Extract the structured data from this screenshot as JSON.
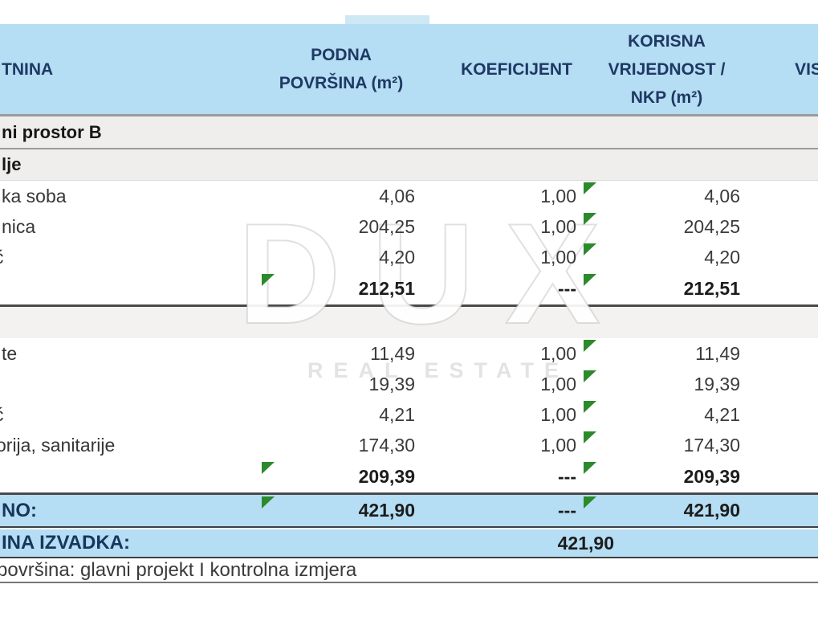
{
  "header": {
    "col_nekretnina": "TNINA",
    "col_podna": [
      "PODNA",
      "POVRŠINA (m²)"
    ],
    "col_koeficijent": "KOEFICIJENT",
    "col_korisna": [
      "KORISNA",
      "VRIJEDNOST /",
      "NKP (m²)"
    ],
    "col_visina": "VIS"
  },
  "rows": [
    {
      "type": "band",
      "label": "ni prostor B"
    },
    {
      "type": "band2",
      "label": "lje"
    },
    {
      "type": "data",
      "label": "ka soba",
      "podna": "4,06",
      "koef": "1,00",
      "korisna": "4,06",
      "flag_korisna": true
    },
    {
      "type": "data",
      "label": "nica",
      "podna": "204,25",
      "koef": "1,00",
      "korisna": "204,25",
      "flag_korisna": true
    },
    {
      "type": "data",
      "label": "ć",
      "label_clip": "clip9",
      "podna": "4,20",
      "koef": "1,00",
      "korisna": "4,20",
      "flag_korisna": true
    },
    {
      "type": "subtotal",
      "label": "",
      "podna": "212,51",
      "koef": "---",
      "korisna": "212,51",
      "flag_podna": true,
      "flag_korisna": true
    },
    {
      "type": "spacer"
    },
    {
      "type": "data",
      "label": "te",
      "podna": "11,49",
      "koef": "1,00",
      "korisna": "11,49",
      "flag_korisna": true
    },
    {
      "type": "data",
      "label": "",
      "podna": "19,39",
      "koef": "1,00",
      "korisna": "19,39",
      "flag_korisna": true
    },
    {
      "type": "data",
      "label": "ć",
      "label_clip": "clip9",
      "podna": "4,21",
      "koef": "1,00",
      "korisna": "4,21",
      "flag_korisna": true
    },
    {
      "type": "data",
      "label": "orija, sanitarije",
      "label_clip": "clip6",
      "podna": "174,30",
      "koef": "1,00",
      "korisna": "174,30",
      "flag_korisna": true
    },
    {
      "type": "subtotal",
      "label": "",
      "podna": "209,39",
      "koef": "---",
      "korisna": "209,39",
      "flag_podna": true,
      "flag_korisna": true
    }
  ],
  "total_row": {
    "label": "NO:",
    "podna": "421,90",
    "koef": "---",
    "korisna": "421,90"
  },
  "izvadka_row": {
    "label": "INA IZVADKA:",
    "value": "421,90"
  },
  "note_row": {
    "text": "površina: glavni projekt I kontrolna izmjera"
  },
  "watermark": {
    "title": "DUX",
    "subtitle": "REAL ESTATE"
  },
  "colors": {
    "header_bg": "#b5ddf3",
    "header_text": "#1f3864",
    "band_bg": "#efeeec",
    "flag_green": "#2b8a2b",
    "border_dark": "#4a4a4a",
    "border_gray": "#9b9b9b"
  }
}
